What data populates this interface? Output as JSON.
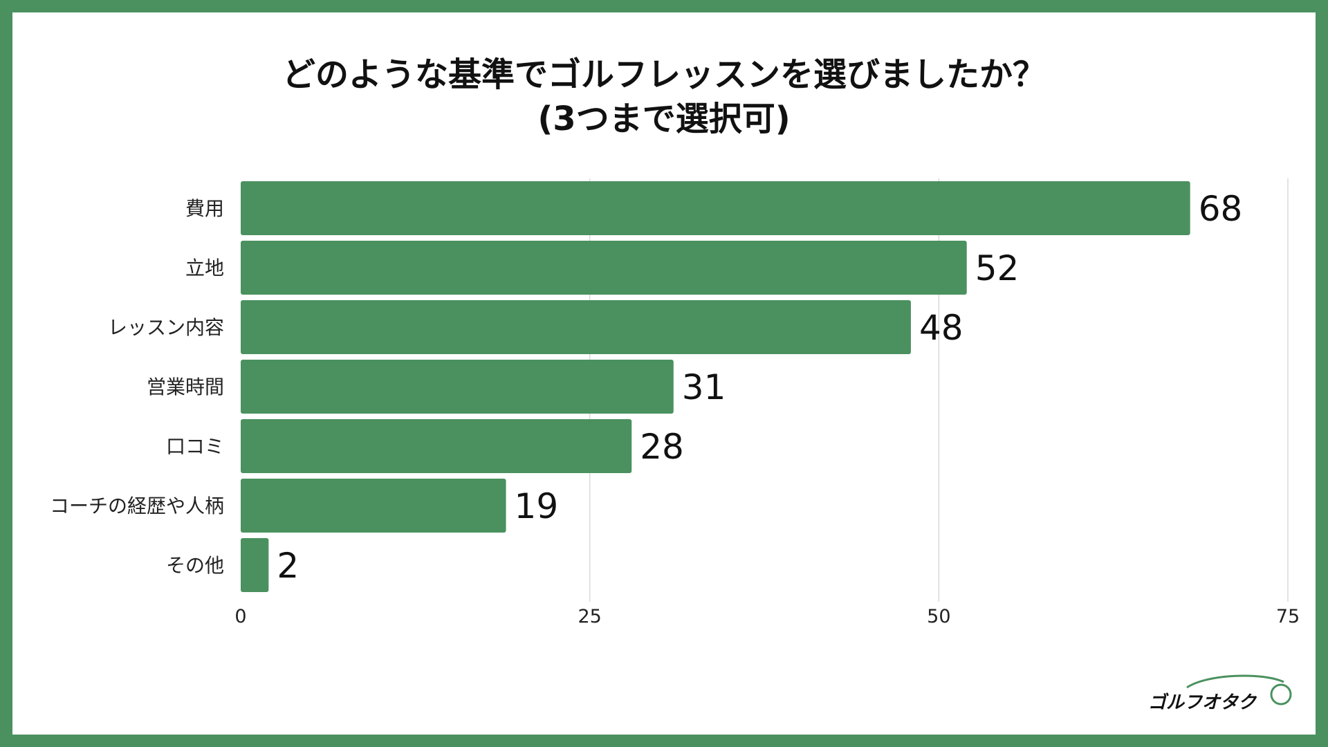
{
  "title_line1": "どのような基準でゴルフレッスンを選びましたか？",
  "title_line2": "(3つまで選択可)",
  "colors": {
    "frame": "#4a915f",
    "bar": "#4a915f",
    "grid": "#d9d9d9",
    "background": "#ffffff"
  },
  "chart_data": {
    "type": "bar",
    "orientation": "horizontal",
    "title": "どのような基準でゴルフレッスンを選びましたか？ (3つまで選択可)",
    "categories": [
      "費用",
      "立地",
      "レッスン内容",
      "営業時間",
      "口コミ",
      "コーチの経歴や人柄",
      "その他"
    ],
    "values": [
      68,
      52,
      48,
      31,
      28,
      19,
      2
    ],
    "xlim": [
      0,
      75
    ],
    "xticks": [
      0,
      25,
      50,
      75
    ],
    "grid": true,
    "legend": "none"
  },
  "logo": {
    "text": "ゴルフオタク",
    "icon": "golf-ball-swoosh-icon"
  }
}
